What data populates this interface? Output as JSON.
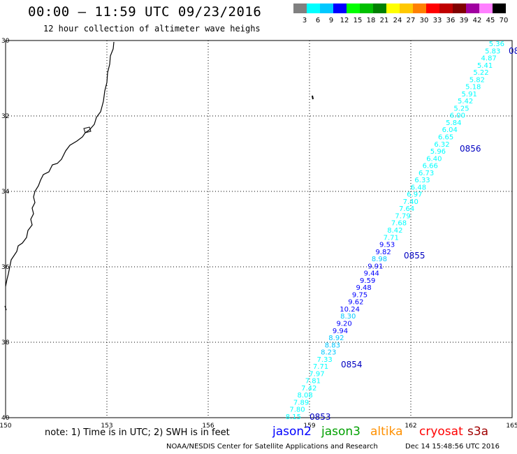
{
  "title": "00:00 – 11:59 UTC 09/23/2016",
  "subtitle": "12 hour collection of altimeter wave heighs",
  "color_scale": {
    "labels": [
      "3",
      "6",
      "9",
      "12",
      "15",
      "18",
      "21",
      "24",
      "27",
      "30",
      "33",
      "36",
      "39",
      "42",
      "45",
      "70"
    ],
    "colors": [
      "#808080",
      "#00ffff",
      "#00c8ff",
      "#0000ff",
      "#00ff00",
      "#00c000",
      "#008000",
      "#ffff00",
      "#ffc800",
      "#ff8000",
      "#ff0000",
      "#c00000",
      "#800000",
      "#a000a0",
      "#ff80ff",
      "#000000"
    ]
  },
  "map": {
    "lat_labels": [
      "30",
      "32",
      "34",
      "36",
      "38",
      "40"
    ],
    "lon_labels": [
      "150",
      "153",
      "156",
      "159",
      "162",
      "165"
    ],
    "lat_values": [
      30,
      32,
      34,
      36,
      38,
      40
    ],
    "lon_values": [
      150,
      153,
      156,
      159,
      162,
      165
    ],
    "lat_range": [
      30,
      40
    ],
    "lon_range": [
      150,
      165
    ],
    "grid": "dotted"
  },
  "swh_track": {
    "satellite": "jason2",
    "values": [
      {
        "v": "5.36",
        "c": "#00ffff"
      },
      {
        "v": "5.83",
        "c": "#00ffff"
      },
      {
        "v": "4.87",
        "c": "#00ffff"
      },
      {
        "v": "5.41",
        "c": "#00ffff"
      },
      {
        "v": "5.22",
        "c": "#00ffff"
      },
      {
        "v": "5.82",
        "c": "#00ffff"
      },
      {
        "v": "5.18",
        "c": "#00ffff"
      },
      {
        "v": "5.91",
        "c": "#00ffff"
      },
      {
        "v": "5.42",
        "c": "#00ffff"
      },
      {
        "v": "5.25",
        "c": "#00ffff"
      },
      {
        "v": "6.00",
        "c": "#00ffff"
      },
      {
        "v": "5.84",
        "c": "#00ffff"
      },
      {
        "v": "6.04",
        "c": "#00ffff"
      },
      {
        "v": "6.65",
        "c": "#00ffff"
      },
      {
        "v": "6.32",
        "c": "#00ffff"
      },
      {
        "v": "5.96",
        "c": "#00ffff"
      },
      {
        "v": "6.40",
        "c": "#00ffff"
      },
      {
        "v": "6.66",
        "c": "#00ffff"
      },
      {
        "v": "6.73",
        "c": "#00ffff"
      },
      {
        "v": "6.33",
        "c": "#00ffff"
      },
      {
        "v": "6.48",
        "c": "#00ffff"
      },
      {
        "v": "6.97",
        "c": "#00ffff"
      },
      {
        "v": "7.40",
        "c": "#00ffff"
      },
      {
        "v": "7.64",
        "c": "#00ffff"
      },
      {
        "v": "7.79",
        "c": "#00ffff"
      },
      {
        "v": "7.68",
        "c": "#00ffff"
      },
      {
        "v": "8.42",
        "c": "#00ffff"
      },
      {
        "v": "7.71",
        "c": "#00ffff"
      },
      {
        "v": "9.53",
        "c": "#0000ff"
      },
      {
        "v": "9.82",
        "c": "#0000ff"
      },
      {
        "v": "8.98",
        "c": "#00c8ff"
      },
      {
        "v": "9.91",
        "c": "#0000ff"
      },
      {
        "v": "9.44",
        "c": "#0000ff"
      },
      {
        "v": "9.59",
        "c": "#0000ff"
      },
      {
        "v": "9.48",
        "c": "#0000ff"
      },
      {
        "v": "9.75",
        "c": "#0000ff"
      },
      {
        "v": "9.62",
        "c": "#0000ff"
      },
      {
        "v": "10.24",
        "c": "#0000ff"
      },
      {
        "v": "8.30",
        "c": "#00c8ff"
      },
      {
        "v": "9.20",
        "c": "#0000ff"
      },
      {
        "v": "9.94",
        "c": "#0000ff"
      },
      {
        "v": "8.92",
        "c": "#00c8ff"
      },
      {
        "v": "8.83",
        "c": "#00c8ff"
      },
      {
        "v": "8.23",
        "c": "#00c8ff"
      },
      {
        "v": "7.33",
        "c": "#00ffff"
      },
      {
        "v": "7.71",
        "c": "#00ffff"
      },
      {
        "v": "7.97",
        "c": "#00ffff"
      },
      {
        "v": "7.81",
        "c": "#00ffff"
      },
      {
        "v": "7.42",
        "c": "#00ffff"
      },
      {
        "v": "8.08",
        "c": "#00ffff"
      },
      {
        "v": "7.89",
        "c": "#00ffff"
      },
      {
        "v": "7.80",
        "c": "#00ffff"
      },
      {
        "v": "8.15",
        "c": "#00ffff"
      }
    ],
    "time_labels": [
      "08",
      "0856",
      "0855",
      "0854",
      "0853"
    ]
  },
  "note": "note: 1) Time is in UTC; 2) SWH is in feet",
  "legend": [
    {
      "name": "jason2",
      "color": "#0000ff"
    },
    {
      "name": "jason3",
      "color": "#00a000"
    },
    {
      "name": "altika",
      "color": "#ff9000"
    },
    {
      "name": "cryosat",
      "color": "#ff0000"
    },
    {
      "name": "s3a",
      "color": "#a00000"
    }
  ],
  "footer_left": "NOAA/NESDIS Center for Satellite Applications and Research",
  "footer_right": "Dec 14 15:48:56 UTC 2016"
}
